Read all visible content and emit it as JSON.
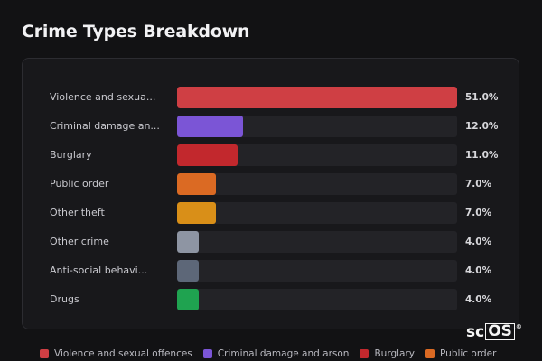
{
  "title": "Crime Types Breakdown",
  "chart_data": {
    "type": "bar",
    "orientation": "horizontal",
    "categories": [
      "Violence and sexua...",
      "Criminal damage an...",
      "Burglary",
      "Public order",
      "Other theft",
      "Other crime",
      "Anti-social behavi...",
      "Drugs"
    ],
    "values": [
      51.0,
      12.0,
      11.0,
      7.0,
      7.0,
      4.0,
      4.0,
      4.0
    ],
    "value_labels": [
      "51.0%",
      "12.0%",
      "11.0%",
      "7.0%",
      "7.0%",
      "4.0%",
      "4.0%",
      "4.0%"
    ],
    "colors": [
      "#cf3f44",
      "#7b55d6",
      "#c2282d",
      "#db6a23",
      "#d98f18",
      "#8e95a3",
      "#5d6778",
      "#1fa350"
    ],
    "xlim": [
      0,
      51.0
    ],
    "unit": "%",
    "legend": {
      "placement": "bottom",
      "entries": [
        {
          "label": "Violence and sexual offences",
          "color": "#cf3f44"
        },
        {
          "label": "Criminal damage and arson",
          "color": "#7b55d6"
        },
        {
          "label": "Burglary",
          "color": "#c2282d"
        },
        {
          "label": "Public order",
          "color": "#db6a23"
        }
      ]
    }
  },
  "watermark": {
    "pre": "sc",
    "boxed": "OS",
    "mark": "®"
  }
}
